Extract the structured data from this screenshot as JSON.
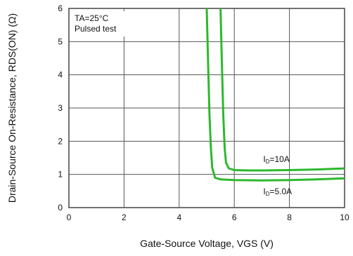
{
  "chart_data": {
    "type": "line",
    "xlabel": "Gate-Source Voltage, VGS (V)",
    "ylabel": "Drain-Source On-Resistance, RDS(ON) (Ω)",
    "xlim": [
      0,
      10
    ],
    "ylim": [
      0,
      6
    ],
    "x_ticks": [
      "0",
      "2",
      "4",
      "6",
      "8",
      "10"
    ],
    "y_ticks": [
      "0",
      "1",
      "2",
      "3",
      "4",
      "5",
      "6"
    ],
    "grid": true,
    "annotations": [
      "TA=25°C",
      "Pulsed test"
    ],
    "series": [
      {
        "name": "ID=10A",
        "label_main": "I",
        "label_sub": "D",
        "label_rest": "=10A",
        "color": "#2db82d",
        "x": [
          5.5,
          5.55,
          5.6,
          5.65,
          5.7,
          5.8,
          6.0,
          6.5,
          7.0,
          8.0,
          9.0,
          10.0
        ],
        "y": [
          6.0,
          4.3,
          2.8,
          1.8,
          1.35,
          1.18,
          1.13,
          1.12,
          1.12,
          1.13,
          1.15,
          1.18
        ]
      },
      {
        "name": "ID=5.0A",
        "label_main": "I",
        "label_sub": "D",
        "label_rest": "=5.0A",
        "color": "#2db82d",
        "x": [
          5.0,
          5.05,
          5.1,
          5.15,
          5.2,
          5.3,
          5.5,
          6.0,
          7.0,
          8.0,
          9.0,
          10.0
        ],
        "y": [
          6.0,
          4.3,
          2.8,
          1.8,
          1.2,
          0.9,
          0.85,
          0.83,
          0.82,
          0.83,
          0.85,
          0.88
        ]
      }
    ]
  }
}
